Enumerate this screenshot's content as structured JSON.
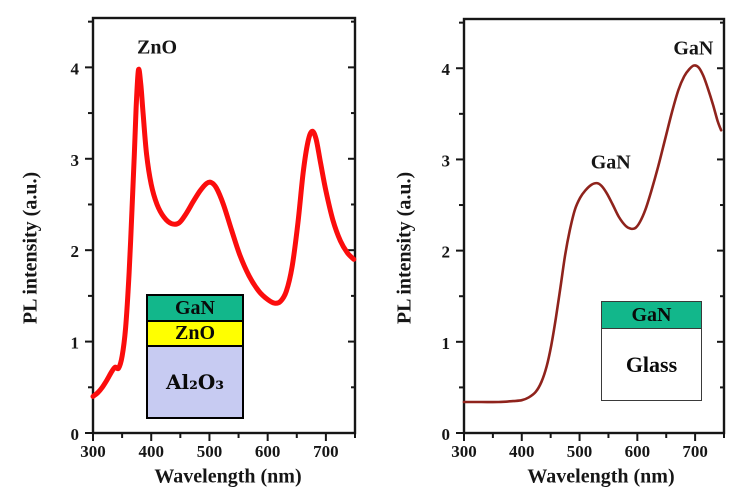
{
  "figure": {
    "background": "#ffffff",
    "axis_color": "#161616",
    "text_color": "#161616"
  },
  "chart_data": [
    {
      "type": "line",
      "xlabel": "Wavelength (nm)",
      "ylabel": "PL intensity (a.u.)",
      "xlim": [
        300,
        750
      ],
      "ylim": [
        0,
        4.54
      ],
      "grid": false,
      "x_major_ticks": [
        300,
        400,
        500,
        600,
        700
      ],
      "x_minor_ticks": [
        350,
        450,
        550,
        650,
        750
      ],
      "y_major_ticks": [
        0,
        1,
        2,
        3,
        4
      ],
      "y_minor_ticks": [
        0.5,
        1.5,
        2.5,
        3.5,
        4.5
      ],
      "series": [
        {
          "color": "#fb0d0d",
          "width": 5,
          "points": [
            [
              300,
              0.4
            ],
            [
              308,
              0.44
            ],
            [
              316,
              0.5
            ],
            [
              324,
              0.58
            ],
            [
              332,
              0.67
            ],
            [
              338,
              0.72
            ],
            [
              344,
              0.71
            ],
            [
              350,
              0.84
            ],
            [
              356,
              1.15
            ],
            [
              362,
              1.75
            ],
            [
              367,
              2.45
            ],
            [
              371,
              3.05
            ],
            [
              374,
              3.55
            ],
            [
              378,
              3.97
            ],
            [
              382,
              3.82
            ],
            [
              386,
              3.5
            ],
            [
              392,
              3.05
            ],
            [
              400,
              2.72
            ],
            [
              410,
              2.5
            ],
            [
              422,
              2.36
            ],
            [
              435,
              2.29
            ],
            [
              448,
              2.3
            ],
            [
              460,
              2.4
            ],
            [
              472,
              2.53
            ],
            [
              484,
              2.65
            ],
            [
              495,
              2.73
            ],
            [
              503,
              2.74
            ],
            [
              512,
              2.68
            ],
            [
              524,
              2.5
            ],
            [
              538,
              2.22
            ],
            [
              552,
              1.95
            ],
            [
              568,
              1.72
            ],
            [
              585,
              1.55
            ],
            [
              600,
              1.46
            ],
            [
              612,
              1.42
            ],
            [
              622,
              1.44
            ],
            [
              632,
              1.55
            ],
            [
              642,
              1.82
            ],
            [
              652,
              2.3
            ],
            [
              661,
              2.85
            ],
            [
              669,
              3.18
            ],
            [
              676,
              3.3
            ],
            [
              683,
              3.22
            ],
            [
              691,
              2.95
            ],
            [
              700,
              2.65
            ],
            [
              712,
              2.33
            ],
            [
              725,
              2.1
            ],
            [
              737,
              1.97
            ],
            [
              748,
              1.9
            ]
          ]
        }
      ],
      "annotations": [
        {
          "text": "ZnO",
          "x": 410,
          "y": 4.15
        }
      ],
      "inset": {
        "layers": [
          {
            "label": "GaN",
            "color": "#12b78b"
          },
          {
            "label": "ZnO",
            "color": "#ffff00"
          },
          {
            "label": "Al₂O₃",
            "color": "#c7cbf2"
          }
        ]
      }
    },
    {
      "type": "line",
      "xlabel": "Wavelength (nm)",
      "ylabel": "PL intensity (a.u.)",
      "xlim": [
        300,
        750
      ],
      "ylim": [
        0,
        4.54
      ],
      "grid": false,
      "x_major_ticks": [
        300,
        400,
        500,
        600,
        700
      ],
      "x_minor_ticks": [
        350,
        450,
        550,
        650,
        750
      ],
      "y_major_ticks": [
        0,
        1,
        2,
        3,
        4
      ],
      "y_minor_ticks": [
        0.5,
        1.5,
        2.5,
        3.5,
        4.5
      ],
      "series": [
        {
          "color": "#8f231c",
          "width": 2.6,
          "points": [
            [
              300,
              0.34
            ],
            [
              330,
              0.34
            ],
            [
              360,
              0.34
            ],
            [
              385,
              0.35
            ],
            [
              400,
              0.36
            ],
            [
              412,
              0.39
            ],
            [
              424,
              0.45
            ],
            [
              434,
              0.56
            ],
            [
              443,
              0.73
            ],
            [
              451,
              0.96
            ],
            [
              459,
              1.26
            ],
            [
              467,
              1.6
            ],
            [
              475,
              1.95
            ],
            [
              483,
              2.22
            ],
            [
              492,
              2.45
            ],
            [
              501,
              2.58
            ],
            [
              510,
              2.66
            ],
            [
              520,
              2.72
            ],
            [
              530,
              2.74
            ],
            [
              538,
              2.71
            ],
            [
              547,
              2.63
            ],
            [
              557,
              2.51
            ],
            [
              568,
              2.37
            ],
            [
              580,
              2.27
            ],
            [
              589,
              2.24
            ],
            [
              597,
              2.25
            ],
            [
              605,
              2.32
            ],
            [
              614,
              2.45
            ],
            [
              624,
              2.65
            ],
            [
              636,
              2.92
            ],
            [
              648,
              3.22
            ],
            [
              660,
              3.52
            ],
            [
              671,
              3.76
            ],
            [
              681,
              3.91
            ],
            [
              690,
              3.99
            ],
            [
              698,
              4.03
            ],
            [
              706,
              4.01
            ],
            [
              714,
              3.92
            ],
            [
              722,
              3.78
            ],
            [
              731,
              3.6
            ],
            [
              739,
              3.42
            ],
            [
              745,
              3.32
            ]
          ]
        }
      ],
      "annotations": [
        {
          "text": "GaN",
          "x": 554,
          "y": 2.9
        },
        {
          "text": "GaN",
          "x": 697,
          "y": 4.15
        }
      ],
      "inset": {
        "layers": [
          {
            "label": "GaN",
            "color": "#12b78b"
          },
          {
            "label": "Glass",
            "color": "#ffffff"
          }
        ]
      }
    }
  ]
}
